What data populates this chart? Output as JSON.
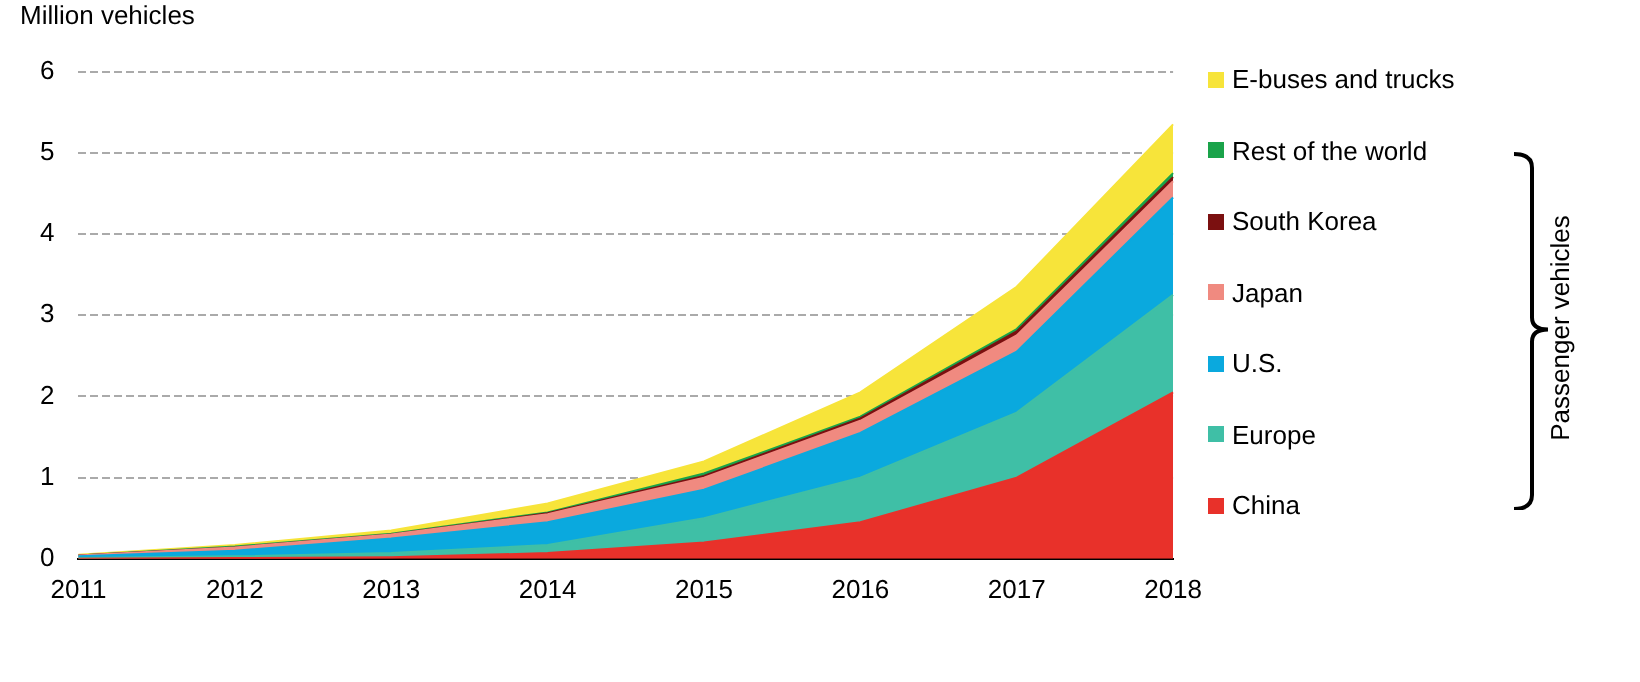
{
  "chart_data": {
    "type": "area",
    "ylabel": "Million vehicles",
    "categories": [
      "2011",
      "2012",
      "2013",
      "2014",
      "2015",
      "2016",
      "2017",
      "2018"
    ],
    "stacked": true,
    "ylim": [
      0,
      6
    ],
    "yticks": [
      0,
      1,
      2,
      3,
      4,
      5,
      6
    ],
    "grid": "y",
    "legend": "right",
    "marker": "none",
    "annotations": [
      "Passenger vehicles"
    ],
    "series": [
      {
        "name": "China",
        "color": "#e8312a",
        "values": [
          0,
          0.01,
          0.02,
          0.07,
          0.2,
          0.45,
          1.0,
          2.05
        ]
      },
      {
        "name": "Europe",
        "color": "#3fbfa6",
        "values": [
          0.01,
          0.02,
          0.05,
          0.1,
          0.3,
          0.55,
          0.8,
          1.2
        ]
      },
      {
        "name": "U.S.",
        "color": "#0aa9de",
        "values": [
          0.02,
          0.07,
          0.18,
          0.28,
          0.35,
          0.55,
          0.75,
          1.2
        ]
      },
      {
        "name": "Japan",
        "color": "#f08a80",
        "values": [
          0.01,
          0.04,
          0.05,
          0.1,
          0.15,
          0.15,
          0.2,
          0.2
        ]
      },
      {
        "name": "South Korea",
        "color": "#7b1010",
        "values": [
          0,
          0,
          0,
          0.01,
          0.02,
          0.03,
          0.05,
          0.05
        ]
      },
      {
        "name": "Rest of the world",
        "color": "#1aa34a",
        "values": [
          0,
          0.01,
          0.01,
          0.01,
          0.03,
          0.02,
          0.03,
          0.05
        ]
      },
      {
        "name": "E-buses and trucks",
        "color": "#f7e43a",
        "values": [
          0.01,
          0.02,
          0.04,
          0.11,
          0.15,
          0.3,
          0.52,
          0.6
        ]
      }
    ]
  }
}
